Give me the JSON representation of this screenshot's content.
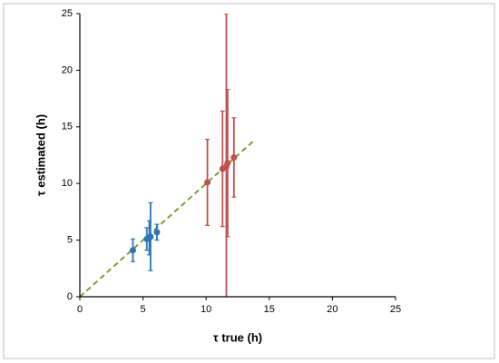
{
  "chart_data": {
    "type": "scatter",
    "x_label": "τ true (h)",
    "y_label": "τ estimated (h)",
    "xlim": [
      0,
      25
    ],
    "xticks": [
      0,
      5,
      10,
      15,
      20,
      25
    ],
    "ylim": [
      0,
      25
    ],
    "yticks": [
      0,
      5,
      10,
      15,
      20,
      25
    ],
    "series": [
      {
        "color": "#2e75b6",
        "x": [
          4.2,
          5.3,
          5.5,
          5.6,
          6.1
        ],
        "y": [
          4.1,
          5.1,
          5.2,
          5.3,
          5.7
        ],
        "err": [
          1.0,
          1.0,
          1.5,
          3.0,
          0.7
        ]
      },
      {
        "color": "#c0504d",
        "x": [
          10.1,
          11.3,
          11.6,
          11.7,
          12.2
        ],
        "y": [
          10.1,
          11.3,
          11.5,
          11.8,
          12.3
        ],
        "err": [
          3.8,
          5.1,
          13.5,
          6.5,
          3.5
        ]
      }
    ],
    "reference_line": {
      "color": "#77a033",
      "x": [
        0,
        13.9
      ],
      "y": [
        0,
        13.9
      ]
    }
  }
}
